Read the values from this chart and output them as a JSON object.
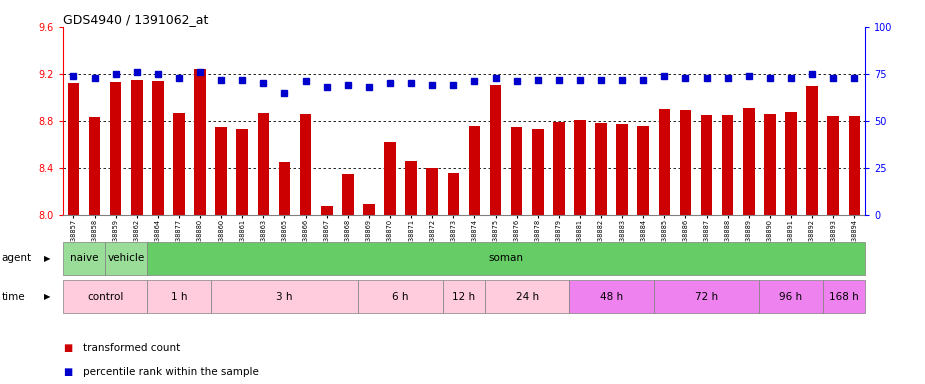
{
  "title": "GDS4940 / 1391062_at",
  "samples": [
    "GSM338857",
    "GSM338858",
    "GSM338859",
    "GSM338862",
    "GSM338864",
    "GSM338877",
    "GSM338880",
    "GSM338860",
    "GSM338861",
    "GSM338863",
    "GSM338865",
    "GSM338866",
    "GSM338867",
    "GSM338868",
    "GSM338869",
    "GSM338870",
    "GSM338871",
    "GSM338872",
    "GSM338873",
    "GSM338874",
    "GSM338875",
    "GSM338876",
    "GSM338878",
    "GSM338879",
    "GSM338881",
    "GSM338882",
    "GSM338883",
    "GSM338884",
    "GSM338885",
    "GSM338886",
    "GSM338887",
    "GSM338888",
    "GSM338889",
    "GSM338890",
    "GSM338891",
    "GSM338892",
    "GSM338893",
    "GSM338894"
  ],
  "bar_values": [
    9.12,
    8.83,
    9.13,
    9.15,
    9.14,
    8.87,
    9.24,
    8.75,
    8.73,
    8.87,
    8.45,
    8.86,
    8.08,
    8.35,
    8.09,
    8.62,
    8.46,
    8.4,
    8.36,
    8.76,
    9.11,
    8.75,
    8.73,
    8.79,
    8.81,
    8.78,
    8.77,
    8.76,
    8.9,
    8.89,
    8.85,
    8.85,
    8.91,
    8.86,
    8.88,
    9.1,
    8.84,
    8.84
  ],
  "percentile_values": [
    74,
    73,
    75,
    76,
    75,
    73,
    76,
    72,
    72,
    70,
    65,
    71,
    68,
    69,
    68,
    70,
    70,
    69,
    69,
    71,
    73,
    71,
    72,
    72,
    72,
    72,
    72,
    72,
    74,
    73,
    73,
    73,
    74,
    73,
    73,
    75,
    73,
    73
  ],
  "ylim_left": [
    8.0,
    9.6
  ],
  "ylim_right": [
    0,
    100
  ],
  "yticks_left": [
    8.0,
    8.4,
    8.8,
    9.2,
    9.6
  ],
  "yticks_right": [
    0,
    25,
    50,
    75,
    100
  ],
  "bar_color": "#cc0000",
  "dot_color": "#0000cc",
  "plot_bg_color": "#ffffff",
  "fig_bg_color": "#ffffff",
  "gridline_values": [
    9.2,
    8.8,
    8.4
  ],
  "agent_spans": [
    {
      "label": "naive",
      "start": 0,
      "end": 2,
      "color": "#99dd99"
    },
    {
      "label": "vehicle",
      "start": 2,
      "end": 4,
      "color": "#99dd99"
    },
    {
      "label": "soman",
      "start": 4,
      "end": 38,
      "color": "#66cc66"
    }
  ],
  "time_spans": [
    {
      "label": "control",
      "start": 0,
      "end": 4,
      "color": "#ffccdd"
    },
    {
      "label": "1 h",
      "start": 4,
      "end": 7,
      "color": "#ffccdd"
    },
    {
      "label": "3 h",
      "start": 7,
      "end": 14,
      "color": "#ffccdd"
    },
    {
      "label": "6 h",
      "start": 14,
      "end": 18,
      "color": "#ffccdd"
    },
    {
      "label": "12 h",
      "start": 18,
      "end": 20,
      "color": "#ffccdd"
    },
    {
      "label": "24 h",
      "start": 20,
      "end": 24,
      "color": "#ffccdd"
    },
    {
      "label": "48 h",
      "start": 24,
      "end": 28,
      "color": "#ee82ee"
    },
    {
      "label": "72 h",
      "start": 28,
      "end": 33,
      "color": "#ee82ee"
    },
    {
      "label": "96 h",
      "start": 33,
      "end": 36,
      "color": "#ee82ee"
    },
    {
      "label": "168 h",
      "start": 36,
      "end": 38,
      "color": "#ee82ee"
    }
  ],
  "legend": [
    {
      "label": "transformed count",
      "color": "#cc0000"
    },
    {
      "label": "percentile rank within the sample",
      "color": "#0000cc"
    }
  ]
}
